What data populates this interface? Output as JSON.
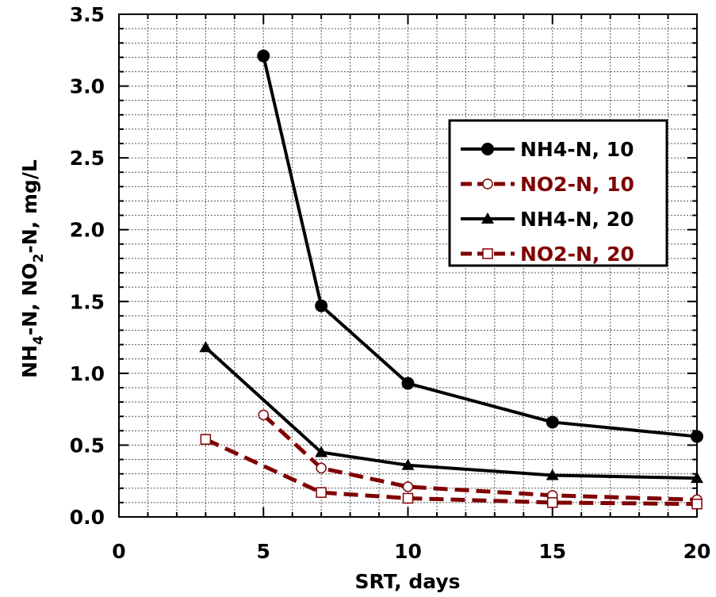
{
  "chart_data": {
    "type": "line",
    "xlabel": "SRT, days",
    "ylabel_parts": {
      "p1": "NH",
      "p1_sub": "4",
      "p2": "-N, NO",
      "p2_sub": "2",
      "p3": "-N, mg/L"
    },
    "xlim": [
      0,
      20
    ],
    "ylim": [
      0,
      3.5
    ],
    "xticks": [
      0,
      5,
      10,
      15,
      20
    ],
    "xtick_labels": [
      "0",
      "5",
      "10",
      "15",
      "20"
    ],
    "yticks": [
      0,
      0.5,
      1.0,
      1.5,
      2.0,
      2.5,
      3.0,
      3.5
    ],
    "ytick_labels": [
      "0.0",
      "0.5",
      "1.0",
      "1.5",
      "2.0",
      "2.5",
      "3.0",
      "3.5"
    ],
    "grid": true,
    "legend_position": "upper-right",
    "series": [
      {
        "name": "NH4-N, 10",
        "color": "#000000",
        "line_style": "solid",
        "marker": "filled-circle",
        "x": [
          5,
          7,
          10,
          15,
          20
        ],
        "y": [
          3.21,
          1.47,
          0.93,
          0.66,
          0.56
        ]
      },
      {
        "name": "NO2-N, 10",
        "color": "#7f0000",
        "line_style": "dashed",
        "marker": "open-circle",
        "x": [
          5,
          7,
          10,
          15,
          20
        ],
        "y": [
          0.71,
          0.34,
          0.21,
          0.15,
          0.12
        ]
      },
      {
        "name": "NH4-N, 20",
        "color": "#000000",
        "line_style": "solid",
        "marker": "filled-triangle",
        "x": [
          3,
          7,
          10,
          15,
          20
        ],
        "y": [
          1.18,
          0.45,
          0.36,
          0.29,
          0.27
        ]
      },
      {
        "name": "NO2-N, 20",
        "color": "#7f0000",
        "line_style": "dashed",
        "marker": "open-square",
        "x": [
          3,
          7,
          10,
          15,
          20
        ],
        "y": [
          0.54,
          0.17,
          0.13,
          0.1,
          0.09
        ]
      }
    ]
  }
}
